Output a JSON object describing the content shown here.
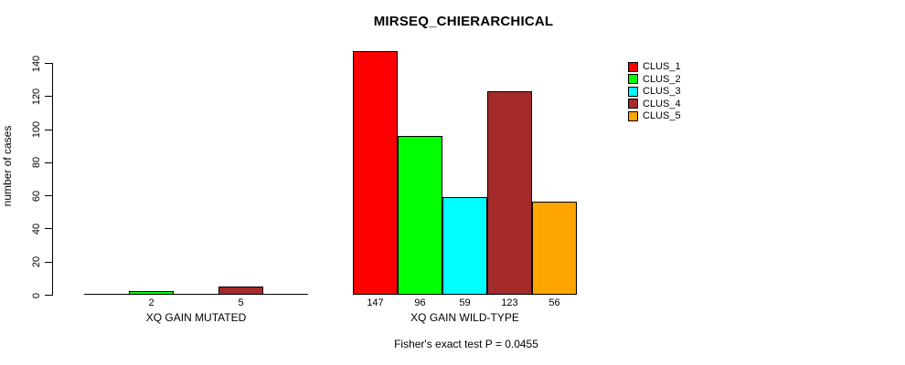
{
  "title": "MIRSEQ_CHIERARCHICAL",
  "caption": "Fisher's exact test P = 0.0455",
  "chart_data": {
    "type": "bar",
    "title": "MIRSEQ_CHIERARCHICAL",
    "xlabel": "",
    "ylabel": "number of cases",
    "ylim": [
      0,
      140
    ],
    "yticks": [
      0,
      20,
      40,
      60,
      80,
      100,
      120,
      140
    ],
    "grid": false,
    "annotation": "Fisher's exact test P = 0.0455",
    "series": [
      {
        "name": "CLUS_1",
        "color": "#FF0000"
      },
      {
        "name": "CLUS_2",
        "color": "#00FF00"
      },
      {
        "name": "CLUS_3",
        "color": "#00FFFF"
      },
      {
        "name": "CLUS_4",
        "color": "#A52A2A"
      },
      {
        "name": "CLUS_5",
        "color": "#FFA500"
      }
    ],
    "groups": [
      {
        "label": "XQ GAIN MUTATED",
        "values": [
          0,
          2,
          0,
          5,
          0
        ]
      },
      {
        "label": "XQ GAIN WILD-TYPE",
        "values": [
          147,
          96,
          59,
          123,
          56
        ]
      }
    ],
    "bar_value_labels": {
      "XQ GAIN MUTATED": [
        "",
        "2",
        "",
        "5",
        ""
      ],
      "XQ GAIN WILD-TYPE": [
        "147",
        "96",
        "59",
        "123",
        "56"
      ]
    },
    "legend": {
      "position": "top-right",
      "entries": [
        "CLUS_1",
        "CLUS_2",
        "CLUS_3",
        "CLUS_4",
        "CLUS_5"
      ]
    },
    "colors": {
      "clus_1": "#FF0000",
      "clus_2": "#00FF00",
      "clus_3": "#00FFFF",
      "clus_4": "#A52A2A",
      "clus_5": "#FFA500",
      "axis": "#000000",
      "background": "#FFFFFF"
    }
  }
}
